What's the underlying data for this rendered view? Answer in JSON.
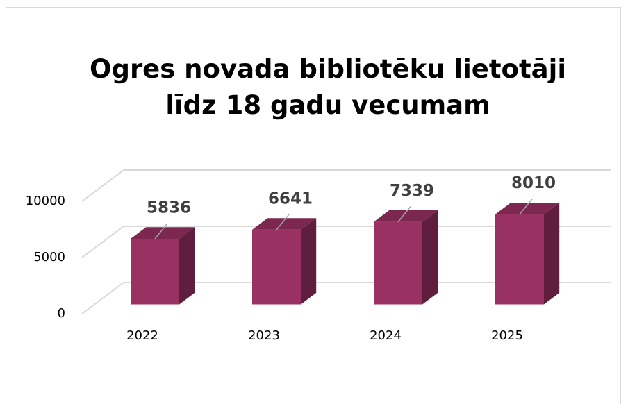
{
  "chart_data": {
    "type": "bar3d",
    "title": "Ogres novada bibliotēku lietotāji līdz 18 gadu vecumam",
    "categories": [
      "2022",
      "2023",
      "2024",
      "2025"
    ],
    "values": [
      5836,
      6641,
      7339,
      8010
    ],
    "color": "#9a3163",
    "ylim": [
      0,
      10000
    ],
    "yticks": [
      0,
      5000,
      10000
    ],
    "grid": true
  }
}
